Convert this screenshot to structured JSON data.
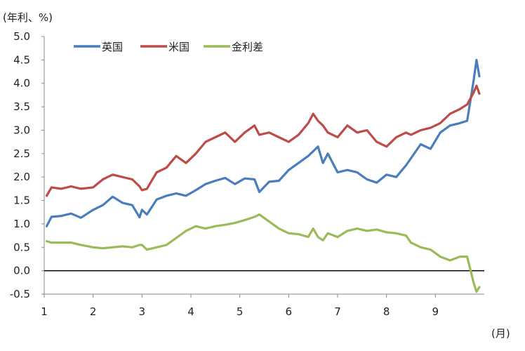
{
  "chart_data": {
    "type": "line",
    "y_unit_label": "(年利、%)",
    "x_unit_label": "(月)",
    "ylim": [
      -0.5,
      5.0
    ],
    "xlim": [
      1,
      10
    ],
    "y_ticks": [
      "5.0",
      "4.5",
      "4.0",
      "3.5",
      "3.0",
      "2.5",
      "2.0",
      "1.5",
      "1.0",
      "0.5",
      "0.0",
      "-0.5"
    ],
    "x_ticks": [
      "1",
      "2",
      "3",
      "4",
      "5",
      "6",
      "7",
      "8",
      "9"
    ],
    "grid": false,
    "zero_line": true,
    "legend_position": "top-left",
    "series": [
      {
        "name": "英国",
        "color": "#4a7ebb",
        "x": [
          1.05,
          1.15,
          1.35,
          1.55,
          1.75,
          2.0,
          2.2,
          2.4,
          2.6,
          2.8,
          2.95,
          3.0,
          3.1,
          3.3,
          3.5,
          3.7,
          3.9,
          4.1,
          4.3,
          4.5,
          4.7,
          4.9,
          5.1,
          5.3,
          5.4,
          5.6,
          5.8,
          6.0,
          6.2,
          6.4,
          6.5,
          6.6,
          6.7,
          6.8,
          7.0,
          7.2,
          7.4,
          7.6,
          7.8,
          8.0,
          8.2,
          8.4,
          8.5,
          8.7,
          8.9,
          9.1,
          9.3,
          9.5,
          9.65,
          9.78,
          9.84,
          9.9
        ],
        "values": [
          0.95,
          1.15,
          1.17,
          1.22,
          1.13,
          1.3,
          1.4,
          1.58,
          1.45,
          1.4,
          1.14,
          1.3,
          1.2,
          1.52,
          1.6,
          1.65,
          1.6,
          1.72,
          1.85,
          1.92,
          1.98,
          1.85,
          1.97,
          1.95,
          1.68,
          1.9,
          1.92,
          2.15,
          2.3,
          2.45,
          2.55,
          2.65,
          2.3,
          2.5,
          2.1,
          2.15,
          2.1,
          1.95,
          1.88,
          2.05,
          2.0,
          2.25,
          2.4,
          2.7,
          2.6,
          2.95,
          3.1,
          3.15,
          3.2,
          4.05,
          4.5,
          4.15
        ]
      },
      {
        "name": "米国",
        "color": "#be4b48",
        "x": [
          1.05,
          1.15,
          1.35,
          1.55,
          1.75,
          2.0,
          2.2,
          2.4,
          2.6,
          2.8,
          2.95,
          3.0,
          3.1,
          3.3,
          3.5,
          3.7,
          3.9,
          4.1,
          4.3,
          4.5,
          4.7,
          4.9,
          5.1,
          5.3,
          5.4,
          5.6,
          5.8,
          6.0,
          6.2,
          6.4,
          6.5,
          6.6,
          6.7,
          6.8,
          7.0,
          7.2,
          7.4,
          7.6,
          7.8,
          8.0,
          8.2,
          8.4,
          8.5,
          8.7,
          8.9,
          9.1,
          9.3,
          9.5,
          9.65,
          9.78,
          9.84,
          9.9
        ],
        "values": [
          1.6,
          1.78,
          1.75,
          1.8,
          1.75,
          1.78,
          1.95,
          2.05,
          2.0,
          1.95,
          1.8,
          1.72,
          1.75,
          2.1,
          2.2,
          2.45,
          2.3,
          2.5,
          2.75,
          2.85,
          2.95,
          2.75,
          2.95,
          3.1,
          2.9,
          2.95,
          2.85,
          2.75,
          2.9,
          3.15,
          3.35,
          3.2,
          3.1,
          2.95,
          2.85,
          3.1,
          2.95,
          3.0,
          2.75,
          2.65,
          2.85,
          2.95,
          2.9,
          3.0,
          3.05,
          3.15,
          3.35,
          3.45,
          3.55,
          3.8,
          3.95,
          3.78
        ]
      },
      {
        "name": "金利差",
        "color": "#9bbb59",
        "x": [
          1.05,
          1.15,
          1.35,
          1.55,
          1.75,
          2.0,
          2.2,
          2.4,
          2.6,
          2.8,
          2.95,
          3.0,
          3.1,
          3.3,
          3.5,
          3.7,
          3.9,
          4.1,
          4.3,
          4.5,
          4.7,
          4.9,
          5.1,
          5.3,
          5.4,
          5.6,
          5.8,
          6.0,
          6.2,
          6.4,
          6.5,
          6.6,
          6.7,
          6.8,
          7.0,
          7.2,
          7.4,
          7.6,
          7.8,
          8.0,
          8.2,
          8.4,
          8.5,
          8.7,
          8.9,
          9.1,
          9.3,
          9.5,
          9.65,
          9.78,
          9.84,
          9.9
        ],
        "values": [
          0.63,
          0.6,
          0.6,
          0.6,
          0.55,
          0.5,
          0.48,
          0.5,
          0.52,
          0.5,
          0.55,
          0.55,
          0.45,
          0.5,
          0.55,
          0.7,
          0.85,
          0.95,
          0.9,
          0.95,
          0.98,
          1.02,
          1.08,
          1.15,
          1.2,
          1.05,
          0.9,
          0.8,
          0.78,
          0.72,
          0.9,
          0.72,
          0.65,
          0.8,
          0.72,
          0.85,
          0.9,
          0.85,
          0.88,
          0.82,
          0.8,
          0.75,
          0.6,
          0.5,
          0.45,
          0.3,
          0.22,
          0.3,
          0.3,
          -0.25,
          -0.45,
          -0.35
        ]
      }
    ]
  }
}
